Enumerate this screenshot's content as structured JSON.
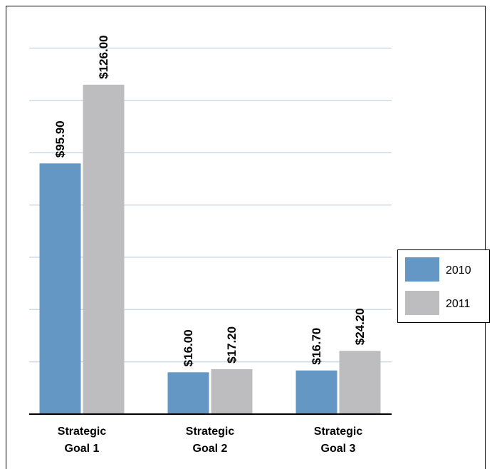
{
  "chart_data": {
    "type": "bar",
    "categories": [
      [
        "Strategic",
        "Goal 1"
      ],
      [
        "Strategic",
        "Goal 2"
      ],
      [
        "Strategic",
        "Goal 3"
      ]
    ],
    "series": [
      {
        "name": "2010",
        "color": "#6597c4",
        "values": [
          95.9,
          16.0,
          16.7
        ],
        "labels": [
          "$95.90",
          "$16.00",
          "$16.70"
        ]
      },
      {
        "name": "2011",
        "color": "#bdbdbf",
        "values": [
          126.0,
          17.2,
          24.2
        ],
        "labels": [
          "$126.00",
          "$17.20",
          "$24.20"
        ]
      }
    ],
    "ylim": [
      0,
      140
    ],
    "y_gridline_step": 20,
    "grid": true,
    "gridline_color": "#c9dbe9",
    "legend_position": "right",
    "data_label_orientation": "vertical"
  }
}
